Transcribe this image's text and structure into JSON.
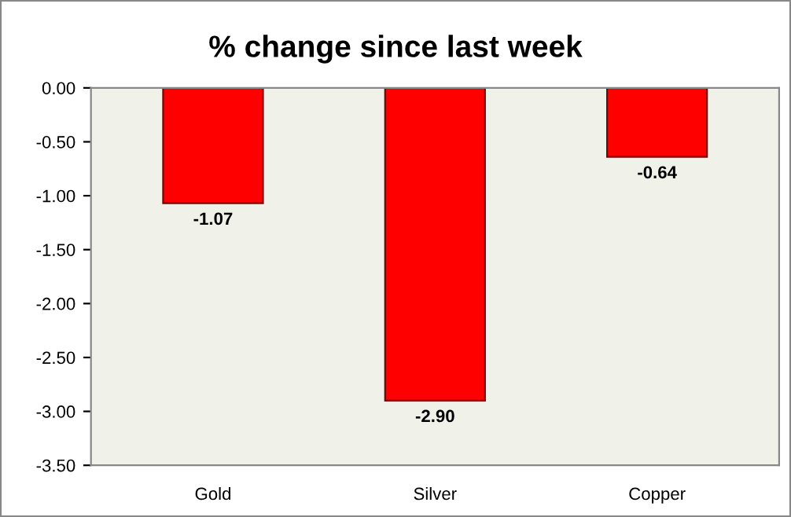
{
  "chart_data": {
    "type": "bar",
    "title": "% change since last week",
    "categories": [
      "Gold",
      "Silver",
      "Copper"
    ],
    "values": [
      -1.07,
      -2.9,
      -0.64
    ],
    "value_labels": [
      "-1.07",
      "-2.90",
      "-0.64"
    ],
    "color": "#ff0000",
    "ylim": [
      -3.5,
      0
    ],
    "yticks": [
      {
        "value": 0,
        "label": "0.00"
      },
      {
        "value": -0.5,
        "label": "-0.50"
      },
      {
        "value": -1,
        "label": "-1.00"
      },
      {
        "value": -1.5,
        "label": "-1.50"
      },
      {
        "value": -2,
        "label": "-2.00"
      },
      {
        "value": -2.5,
        "label": "-2.50"
      },
      {
        "value": -3,
        "label": "-3.00"
      },
      {
        "value": -3.5,
        "label": "-3.50"
      }
    ],
    "grid": false
  }
}
